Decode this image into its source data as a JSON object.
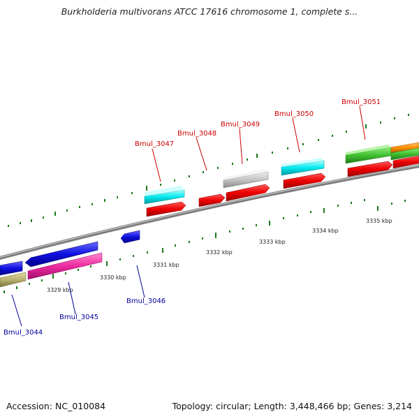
{
  "map": {
    "title": "Burkholderia multivorans ATCC 17616 chromosome 1, complete s...",
    "accession": "Accession: NC_010084",
    "summary": "Topology: circular; Length: 3,448,466 bp; Genes: 3,214"
  },
  "colors": {
    "forward_label": "#cc0000",
    "reverse_label": "#000099",
    "backbone": "#808080",
    "tick": "#1a7a1a"
  },
  "scale_labels": [
    "3329 kbp",
    "3330 kbp",
    "3331 kbp",
    "3332 kbp",
    "3333 kbp",
    "3334 kbp",
    "3335 kbp"
  ],
  "forward_genes": [
    {
      "name": "Bmul_3047"
    },
    {
      "name": "Bmul_3048"
    },
    {
      "name": "Bmul_3049"
    },
    {
      "name": "Bmul_3050"
    },
    {
      "name": "Bmul_3051"
    }
  ],
  "reverse_genes": [
    {
      "name": "Bmul_3044"
    },
    {
      "name": "Bmul_3045"
    },
    {
      "name": "Bmul_3046"
    }
  ]
}
